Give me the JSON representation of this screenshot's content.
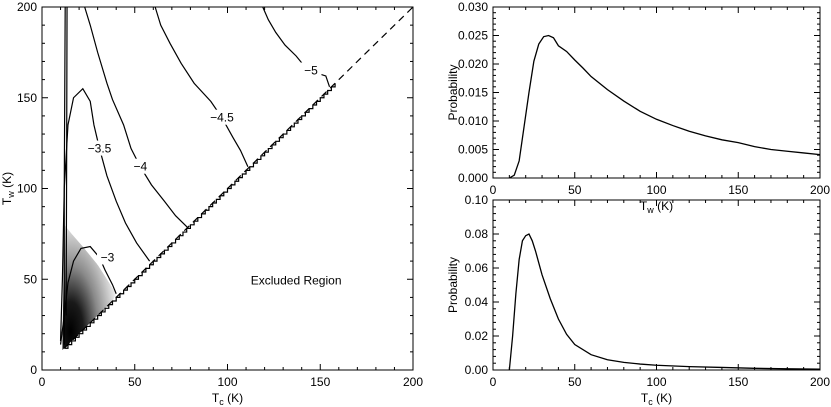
{
  "chart_data": [
    {
      "type": "contour",
      "title": "",
      "xlabel": "T",
      "xlabel_sub": "c",
      "xlabel_unit": " (K)",
      "ylabel": "T",
      "ylabel_sub": "w",
      "ylabel_unit": " (K)",
      "xlim": [
        0,
        200
      ],
      "ylim": [
        0,
        200
      ],
      "xticks": [
        0,
        50,
        100,
        150,
        200
      ],
      "yticks": [
        0,
        50,
        100,
        150,
        200
      ],
      "annotation": "Excluded Region",
      "diagonal": "T_w = T_c (dashed)",
      "contour_levels": [
        {
          "label": "-3",
          "points": [
            [
              10,
              14
            ],
            [
              12,
              30
            ],
            [
              14,
              48
            ],
            [
              17,
              60
            ],
            [
              21,
              67
            ],
            [
              26,
              68
            ],
            [
              31,
              62
            ],
            [
              34,
              55
            ],
            [
              38,
              47
            ],
            [
              40,
              42
            ]
          ]
        },
        {
          "label": "-3.5",
          "points": [
            [
              10,
              16
            ],
            [
              11,
              50
            ],
            [
              12,
              100
            ],
            [
              14,
              135
            ],
            [
              17,
              150
            ],
            [
              22,
              155
            ],
            [
              26,
              148
            ],
            [
              28,
              135
            ],
            [
              31,
              122
            ],
            [
              35,
              107
            ],
            [
              40,
              93
            ],
            [
              45,
              81
            ],
            [
              51,
              70
            ],
            [
              58,
              60
            ]
          ]
        },
        {
          "label": "-4",
          "points": [
            [
              23,
              200
            ],
            [
              26,
              190
            ],
            [
              30,
              175
            ],
            [
              35,
              158
            ],
            [
              38,
              149
            ],
            [
              44,
              135
            ],
            [
              48,
              122
            ],
            [
              53,
              112
            ],
            [
              59,
              102
            ],
            [
              66,
              93
            ],
            [
              72,
              85
            ],
            [
              79,
              78
            ]
          ]
        },
        {
          "label": "-4.5",
          "points": [
            [
              61,
              200
            ],
            [
              64,
              190
            ],
            [
              69,
              180
            ],
            [
              75,
              169
            ],
            [
              82,
              158
            ],
            [
              91,
              148
            ],
            [
              97,
              139
            ],
            [
              103,
              128
            ],
            [
              107,
              121
            ],
            [
              111,
              112
            ]
          ]
        },
        {
          "label": "-5",
          "points": [
            [
              119,
              200
            ],
            [
              122,
              193
            ],
            [
              126,
              186
            ],
            [
              131,
              179
            ],
            [
              137,
              173
            ],
            [
              141,
              168
            ],
            [
              145,
              165
            ],
            [
              150,
              163
            ],
            [
              153,
              162
            ],
            [
              155,
              156
            ]
          ]
        },
        {
          "label": "",
          "points": [
            [
              12,
              14
            ],
            [
              12,
              100
            ],
            [
              12.5,
              200
            ]
          ]
        },
        {
          "label": "",
          "points": [
            [
              13,
              30
            ],
            [
              13.3,
              120
            ],
            [
              13.5,
              200
            ]
          ]
        }
      ]
    },
    {
      "type": "line",
      "xlabel": "T",
      "xlabel_sub": "w",
      "xlabel_unit": " (K)",
      "ylabel": "Probability",
      "xlim": [
        0,
        200
      ],
      "ylim": [
        0,
        0.03
      ],
      "xticks": [
        0,
        50,
        100,
        150,
        200
      ],
      "yticks": [
        0.0,
        0.005,
        0.01,
        0.015,
        0.02,
        0.025,
        0.03
      ],
      "ytick_labels": [
        "0.000",
        "0.005",
        "0.010",
        "0.015",
        "0.020",
        "0.025",
        "0.030"
      ],
      "x": [
        10,
        13,
        16,
        19,
        22,
        25,
        28,
        31,
        34,
        37,
        40,
        45,
        50,
        55,
        60,
        70,
        80,
        90,
        100,
        110,
        120,
        130,
        140,
        150,
        160,
        170,
        180,
        190,
        200
      ],
      "y": [
        0.0,
        0.0005,
        0.003,
        0.009,
        0.015,
        0.0205,
        0.0235,
        0.0248,
        0.025,
        0.0246,
        0.0232,
        0.0222,
        0.0207,
        0.0193,
        0.0178,
        0.0155,
        0.0135,
        0.0117,
        0.0103,
        0.0092,
        0.0082,
        0.0074,
        0.0067,
        0.0062,
        0.0055,
        0.005,
        0.0047,
        0.0044,
        0.0041
      ]
    },
    {
      "type": "line",
      "xlabel": "T",
      "xlabel_sub": "c",
      "xlabel_unit": " (K)",
      "ylabel": "Probability",
      "xlim": [
        0,
        200
      ],
      "ylim": [
        0,
        0.1
      ],
      "xticks": [
        0,
        50,
        100,
        150,
        200
      ],
      "yticks": [
        0.0,
        0.02,
        0.04,
        0.06,
        0.08,
        0.1
      ],
      "ytick_labels": [
        "0.00",
        "0.02",
        "0.04",
        "0.06",
        "0.08",
        "0.10"
      ],
      "x": [
        10,
        12,
        14,
        16,
        18,
        20,
        22,
        24,
        26,
        28,
        30,
        35,
        40,
        45,
        50,
        60,
        70,
        80,
        90,
        100,
        120,
        140,
        160,
        180,
        200
      ],
      "y": [
        0.0,
        0.02,
        0.045,
        0.065,
        0.076,
        0.079,
        0.08,
        0.076,
        0.07,
        0.063,
        0.056,
        0.042,
        0.03,
        0.021,
        0.015,
        0.009,
        0.006,
        0.0045,
        0.0035,
        0.0028,
        0.002,
        0.0015,
        0.001,
        0.0007,
        0.0005
      ]
    }
  ]
}
